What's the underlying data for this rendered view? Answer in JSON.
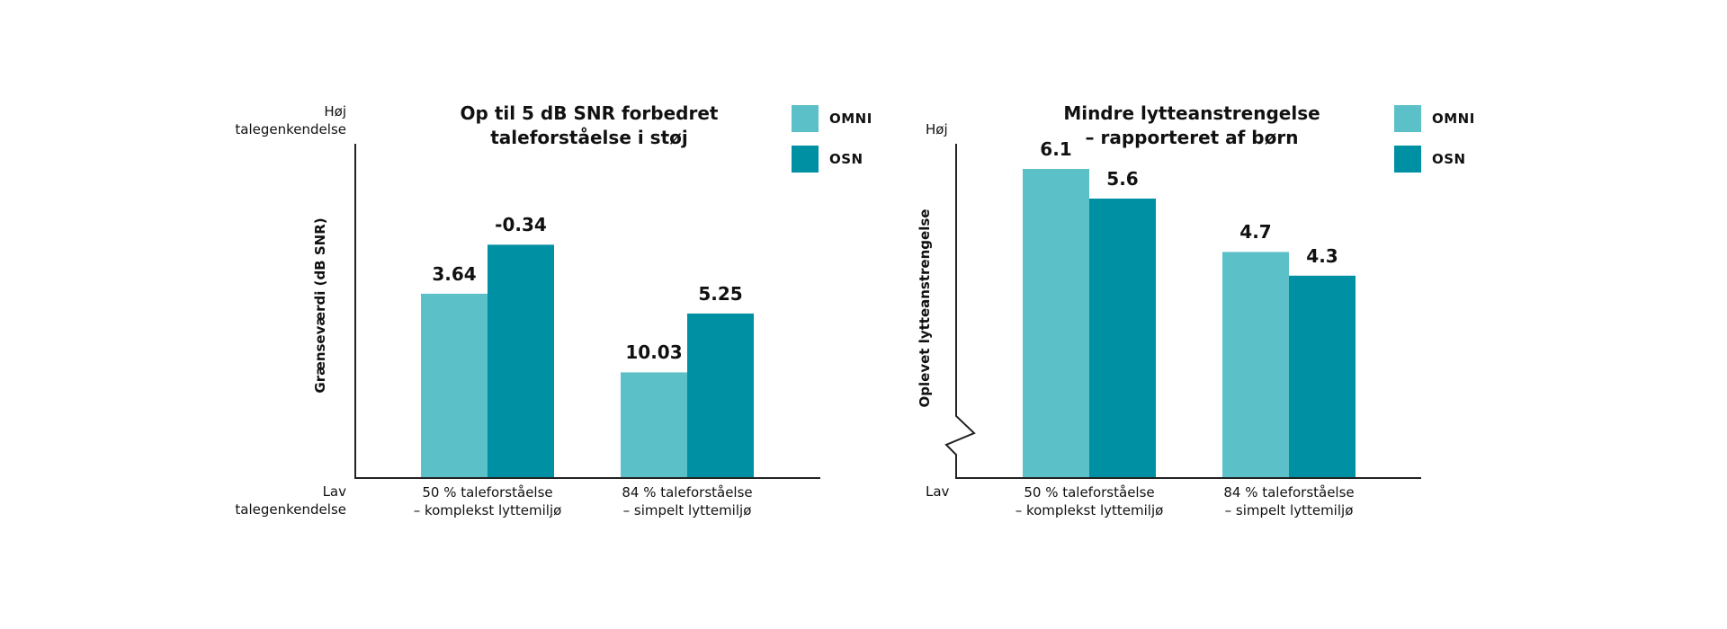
{
  "legend": {
    "omni": {
      "label": "OMNI",
      "color": "#5bc0c8"
    },
    "osn": {
      "label": "OSN",
      "color": "#0090a4"
    }
  },
  "chart_data": [
    {
      "type": "bar",
      "title_lines": [
        "Op til 5 dB SNR forbedret",
        "taleforståelse i støj"
      ],
      "ylabel": "Grænseværdi (dB SNR)",
      "y_top_lines": [
        "Høj",
        "talegenkendelse"
      ],
      "y_bottom_lines": [
        "Lav",
        "talegenkendelse"
      ],
      "y_inverted": true,
      "categories": [
        [
          "50 % taleforståelse",
          "– komplekst lyttemiljø"
        ],
        [
          "84 % taleforståelse",
          "– simpelt lyttemiljø"
        ]
      ],
      "series": [
        {
          "name": "OMNI",
          "values": [
            3.64,
            10.03
          ]
        },
        {
          "name": "OSN",
          "values": [
            -0.34,
            5.25
          ]
        }
      ],
      "value_labels": [
        [
          "3.64",
          "10.03"
        ],
        [
          "-0.34",
          "5.25"
        ]
      ]
    },
    {
      "type": "bar",
      "title_lines": [
        "Mindre lytteanstrengelse",
        "– rapporteret af børn"
      ],
      "ylabel": "Oplevet lytteanstrengelse",
      "y_top_lines": [
        "Høj"
      ],
      "y_bottom_lines": [
        "Lav"
      ],
      "axis_break": true,
      "categories": [
        [
          "50 % taleforståelse",
          "– komplekst lyttemiljø"
        ],
        [
          "84 % taleforståelse",
          "– simpelt lyttemiljø"
        ]
      ],
      "series": [
        {
          "name": "OMNI",
          "values": [
            6.1,
            4.7
          ]
        },
        {
          "name": "OSN",
          "values": [
            5.6,
            4.3
          ]
        }
      ],
      "value_labels": [
        [
          "6.1",
          "4.7"
        ],
        [
          "5.6",
          "4.3"
        ]
      ]
    }
  ]
}
